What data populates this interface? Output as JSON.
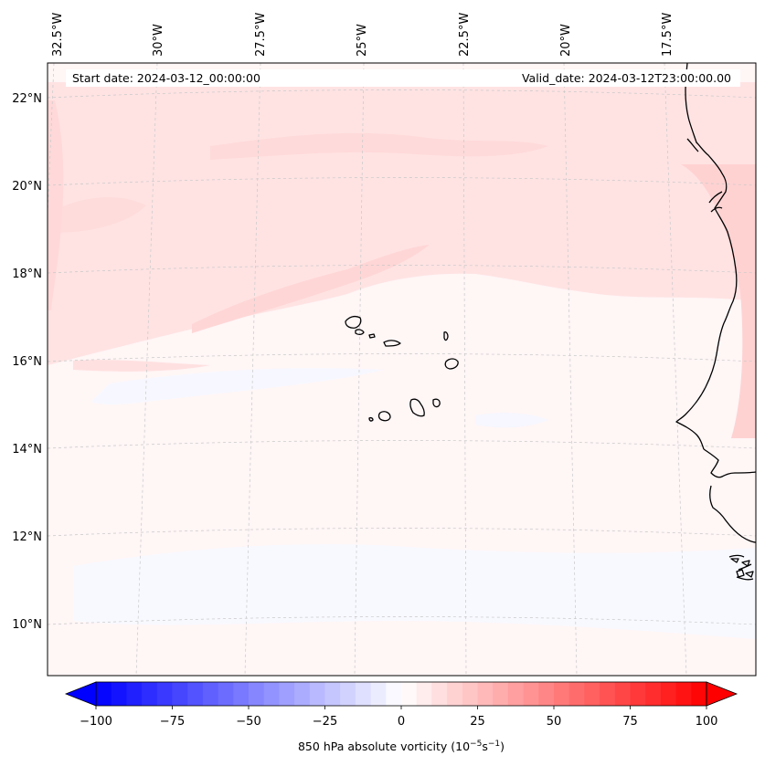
{
  "map": {
    "field": "850 hPa absolute vorticity",
    "lon_labels": [
      "32.5°W",
      "30°W",
      "27.5°W",
      "25°W",
      "22.5°W",
      "20°W",
      "17.5°W"
    ],
    "lat_labels": [
      "22°N",
      "20°N",
      "18°N",
      "16°N",
      "14°N",
      "12°N",
      "10°N"
    ],
    "start_date": "Start date: 2024-03-12_00:00:00",
    "valid_date": "Valid_date: 2024-03-12T23:00:00.00"
  },
  "colorbar": {
    "ticks": [
      "−100",
      "−75",
      "−50",
      "−25",
      "0",
      "25",
      "50",
      "75",
      "100"
    ],
    "label_main": "850 hPa absolute vorticity (10",
    "label_exp1": "−5",
    "label_mid": "s",
    "label_exp2": "−1",
    "label_end": ")",
    "min": -100,
    "max": 100,
    "colormap": "bwr",
    "extend": "both"
  },
  "colors": {
    "neg_max": "#0000ff",
    "zero": "#ffffff",
    "pos_max": "#ff0000",
    "coastline": "#000000",
    "gridline": "#c8c8c8"
  }
}
